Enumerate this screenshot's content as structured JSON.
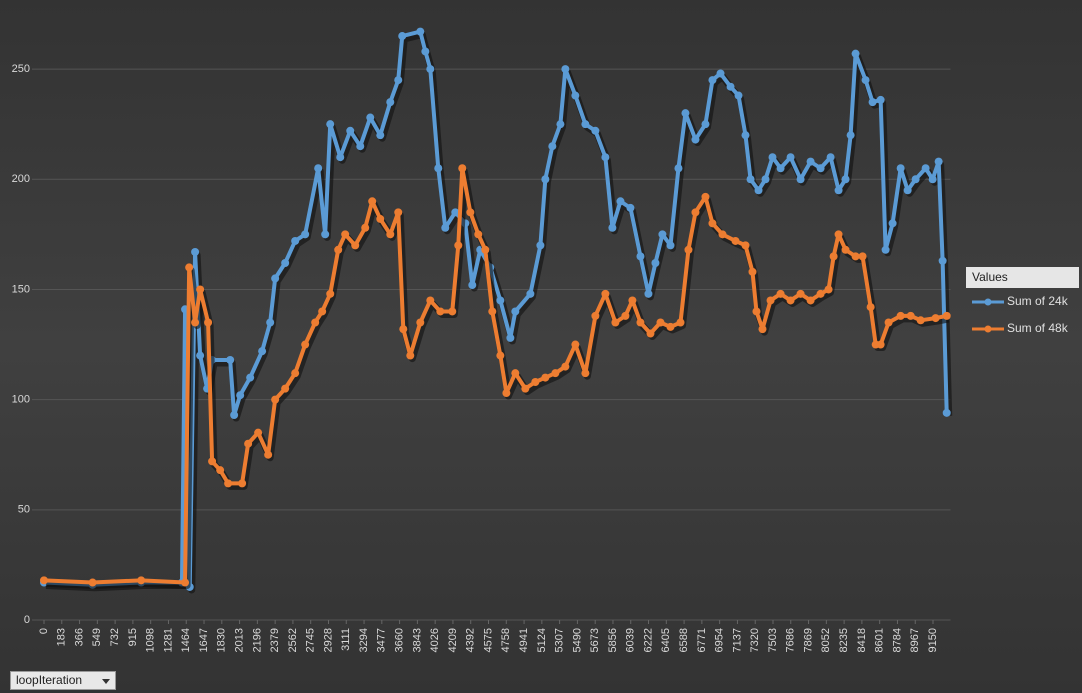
{
  "chart_data": {
    "type": "line",
    "legend_title": "Values",
    "x_field": "loopIteration",
    "xlim": [
      0,
      9330
    ],
    "ylim": [
      0,
      270
    ],
    "yticks": [
      0,
      50,
      100,
      150,
      200,
      250
    ],
    "xticks": [
      0,
      183,
      366,
      549,
      732,
      915,
      1098,
      1281,
      1464,
      1647,
      1830,
      2013,
      2196,
      2379,
      2562,
      2745,
      2928,
      3111,
      3294,
      3477,
      3660,
      3843,
      4026,
      4209,
      4392,
      4575,
      4758,
      4941,
      5124,
      5307,
      5490,
      5673,
      5856,
      6039,
      6222,
      6405,
      6588,
      6771,
      6954,
      7137,
      7320,
      7503,
      7686,
      7869,
      8052,
      8235,
      8418,
      8601,
      8784,
      8967,
      9150
    ],
    "grid": true,
    "legend": "right",
    "series": [
      {
        "name": "Sum of 24k",
        "color": "#5b9bd5",
        "x": [
          0,
          500,
          1000,
          1420,
          1452,
          1500,
          1555,
          1607,
          1679,
          1730,
          1916,
          1957,
          2019,
          2122,
          2245,
          2328,
          2379,
          2482,
          2585,
          2688,
          2822,
          2894,
          2946,
          3049,
          3152,
          3255,
          3358,
          3461,
          3564,
          3646,
          3687,
          3873,
          3925,
          3976,
          4058,
          4130,
          4233,
          4336,
          4408,
          4490,
          4593,
          4697,
          4800,
          4851,
          5006,
          5109,
          5160,
          5232,
          5315,
          5366,
          5469,
          5572,
          5675,
          5778,
          5850,
          5933,
          6036,
          6139,
          6221,
          6293,
          6365,
          6448,
          6530,
          6602,
          6705,
          6808,
          6880,
          6963,
          7066,
          7148,
          7220,
          7272,
          7354,
          7426,
          7498,
          7581,
          7684,
          7787,
          7890,
          7993,
          8096,
          8178,
          8250,
          8302,
          8353,
          8456,
          8528,
          8611,
          8662,
          8734,
          8817,
          8889,
          8971,
          9074,
          9146,
          9208,
          9249,
          9291
        ],
        "values": [
          17,
          16,
          17,
          17,
          141,
          15,
          167,
          120,
          105,
          118,
          118,
          93,
          102,
          110,
          122,
          135,
          155,
          162,
          172,
          175,
          205,
          175,
          225,
          210,
          222,
          215,
          228,
          220,
          235,
          245,
          265,
          267,
          258,
          250,
          205,
          178,
          185,
          180,
          152,
          168,
          160,
          145,
          128,
          140,
          148,
          170,
          200,
          215,
          225,
          250,
          238,
          225,
          222,
          210,
          178,
          190,
          187,
          165,
          148,
          162,
          175,
          170,
          205,
          230,
          218,
          225,
          245,
          248,
          242,
          238,
          220,
          200,
          195,
          200,
          210,
          205,
          210,
          200,
          208,
          205,
          210,
          195,
          200,
          220,
          257,
          245,
          235,
          236,
          168,
          180,
          205,
          195,
          200,
          205,
          200,
          208,
          163,
          94
        ]
      },
      {
        "name": "Sum of 48k",
        "color": "#ed7d31",
        "x": [
          0,
          500,
          1000,
          1452,
          1494,
          1555,
          1607,
          1689,
          1730,
          1813,
          1895,
          2039,
          2101,
          2204,
          2307,
          2379,
          2482,
          2585,
          2688,
          2791,
          2863,
          2946,
          3028,
          3100,
          3203,
          3306,
          3378,
          3461,
          3564,
          3646,
          3698,
          3770,
          3873,
          3976,
          4079,
          4202,
          4264,
          4305,
          4388,
          4470,
          4542,
          4614,
          4697,
          4759,
          4851,
          4954,
          5057,
          5160,
          5263,
          5366,
          5469,
          5572,
          5675,
          5778,
          5881,
          5984,
          6056,
          6139,
          6242,
          6345,
          6448,
          6551,
          6633,
          6705,
          6808,
          6880,
          6983,
          7117,
          7220,
          7292,
          7333,
          7395,
          7478,
          7581,
          7684,
          7787,
          7890,
          7993,
          8075,
          8127,
          8178,
          8250,
          8353,
          8425,
          8508,
          8560,
          8611,
          8693,
          8817,
          8920,
          9023,
          9177,
          9291
        ],
        "values": [
          18,
          17,
          18,
          17,
          160,
          135,
          150,
          135,
          72,
          68,
          62,
          62,
          80,
          85,
          75,
          100,
          105,
          112,
          125,
          135,
          140,
          148,
          168,
          175,
          170,
          178,
          190,
          182,
          175,
          185,
          132,
          120,
          135,
          145,
          140,
          140,
          170,
          205,
          185,
          175,
          168,
          140,
          120,
          103,
          112,
          105,
          108,
          110,
          112,
          115,
          125,
          112,
          138,
          148,
          135,
          138,
          145,
          135,
          130,
          135,
          133,
          135,
          168,
          185,
          192,
          180,
          175,
          172,
          170,
          158,
          140,
          132,
          145,
          148,
          145,
          148,
          145,
          148,
          150,
          165,
          175,
          168,
          165,
          165,
          142,
          125,
          125,
          135,
          138,
          138,
          136,
          137,
          138
        ]
      }
    ]
  }
}
